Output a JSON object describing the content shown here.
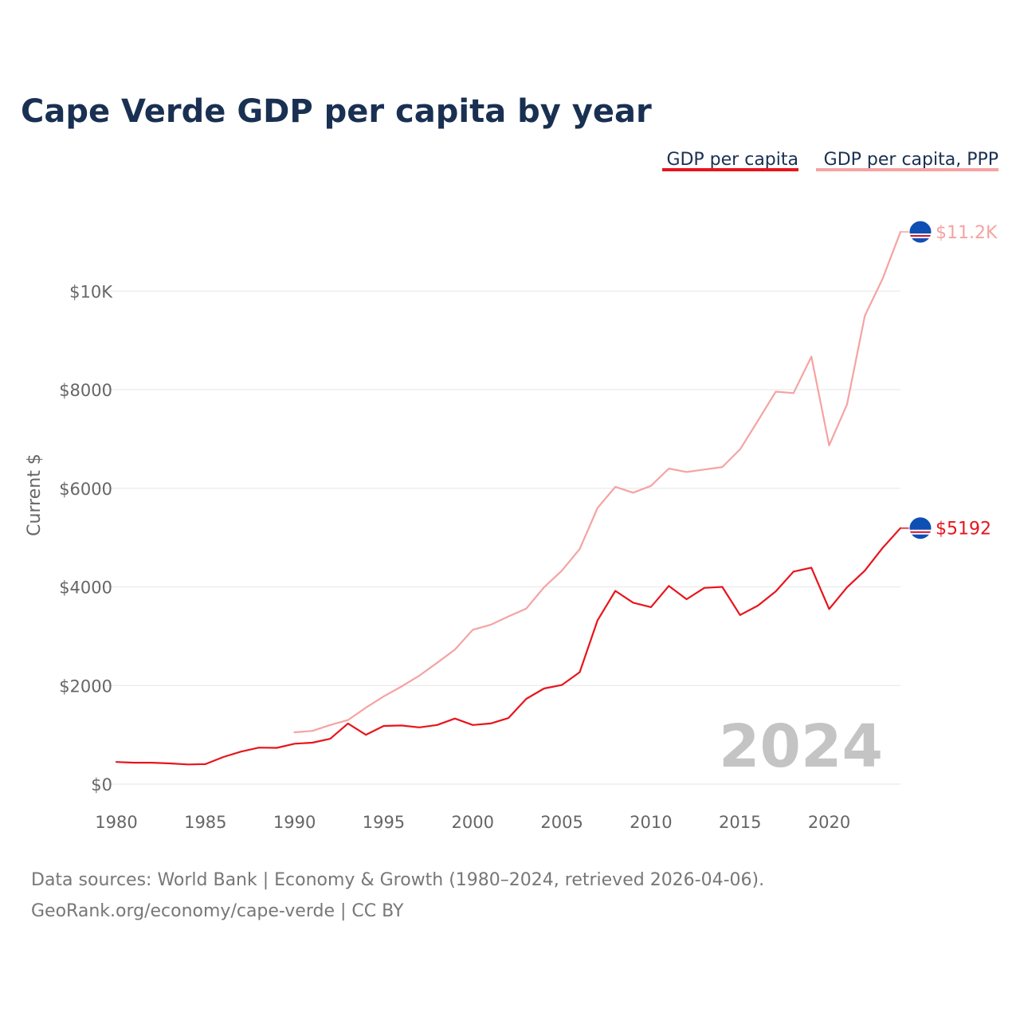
{
  "chart_data": {
    "type": "line",
    "title": "Cape Verde GDP per capita by year",
    "ylabel": "Current $",
    "xlabel": "",
    "xlim": [
      1980,
      2024
    ],
    "ylim": [
      0,
      11200
    ],
    "yticks": [
      0,
      2000,
      4000,
      6000,
      8000,
      10000
    ],
    "ytick_labels": [
      "$0",
      "$2000",
      "$4000",
      "$6000",
      "$8000",
      "$10K"
    ],
    "xticks": [
      1980,
      1985,
      1990,
      1995,
      2000,
      2005,
      2010,
      2015,
      2020
    ],
    "xtick_labels": [
      "1980",
      "1985",
      "1990",
      "1995",
      "2000",
      "2005",
      "2010",
      "2015",
      "2020"
    ],
    "legend_position": "top-right",
    "current_year": "2024",
    "series": [
      {
        "name": "GDP per capita",
        "color": "#e8141c",
        "end_label": "$5192",
        "x": [
          1980,
          1981,
          1982,
          1983,
          1984,
          1985,
          1986,
          1987,
          1988,
          1989,
          1990,
          1991,
          1992,
          1993,
          1994,
          1995,
          1996,
          1997,
          1998,
          1999,
          2000,
          2001,
          2002,
          2003,
          2004,
          2005,
          2006,
          2007,
          2008,
          2009,
          2010,
          2011,
          2012,
          2013,
          2014,
          2015,
          2016,
          2017,
          2018,
          2019,
          2020,
          2021,
          2022,
          2023,
          2024
        ],
        "values": [
          450,
          435,
          435,
          420,
          400,
          405,
          550,
          660,
          740,
          735,
          820,
          840,
          920,
          1230,
          1000,
          1180,
          1190,
          1150,
          1200,
          1330,
          1200,
          1230,
          1340,
          1730,
          1940,
          2010,
          2270,
          3320,
          3920,
          3680,
          3590,
          4020,
          3750,
          3980,
          4000,
          3430,
          3620,
          3910,
          4310,
          4390,
          3550,
          3990,
          4330,
          4790,
          5192
        ]
      },
      {
        "name": "GDP per capita, PPP",
        "color": "#f5a3a3",
        "end_label": "$11.2K",
        "x": [
          1990,
          1991,
          1992,
          1993,
          1994,
          1995,
          1996,
          1997,
          1998,
          1999,
          2000,
          2001,
          2002,
          2003,
          2004,
          2005,
          2006,
          2007,
          2008,
          2009,
          2010,
          2011,
          2012,
          2013,
          2014,
          2015,
          2016,
          2017,
          2018,
          2019,
          2020,
          2021,
          2022,
          2023,
          2024
        ],
        "values": [
          1050,
          1080,
          1200,
          1300,
          1550,
          1780,
          1980,
          2200,
          2460,
          2730,
          3130,
          3230,
          3400,
          3560,
          3990,
          4330,
          4770,
          5600,
          6030,
          5910,
          6050,
          6400,
          6330,
          6380,
          6430,
          6790,
          7370,
          7960,
          7930,
          8670,
          6870,
          7700,
          9500,
          10250,
          11200
        ]
      }
    ]
  },
  "source": {
    "line1": "Data sources: World Bank | Economy & Growth (1980–2024, retrieved 2026-04-06).",
    "line2": "GeoRank.org/economy/cape-verde | CC BY"
  },
  "icons": {
    "marker": "cape-verde-flag-icon",
    "flag_blue": "#0e4fb4",
    "flag_white": "#ffffff",
    "flag_red": "#d21034"
  }
}
